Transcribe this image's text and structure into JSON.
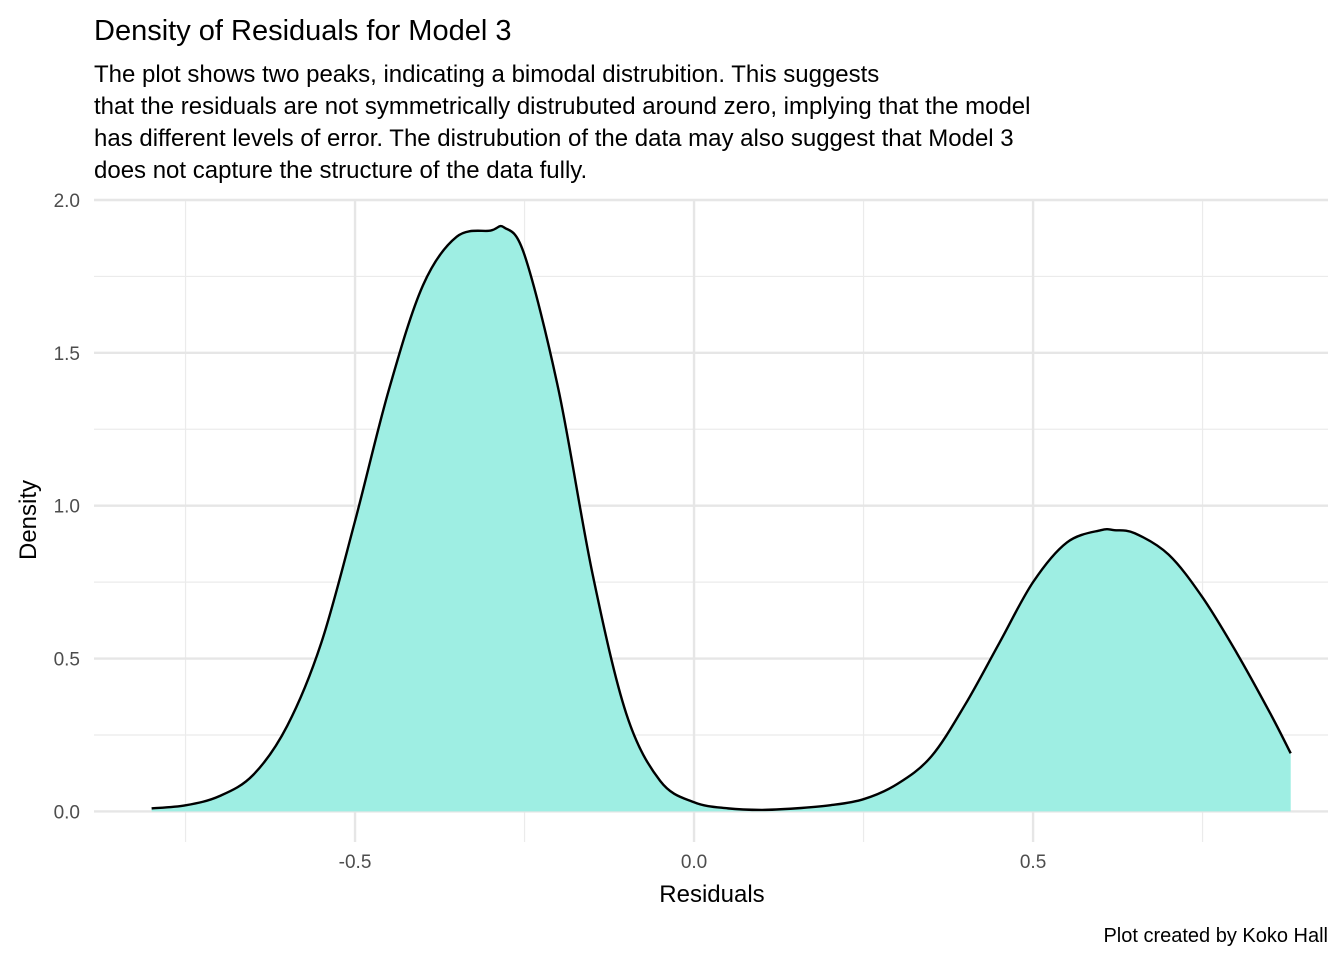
{
  "chart_data": {
    "type": "area",
    "title": "Density of Residuals for Model 3",
    "subtitle_lines": [
      "The plot shows two peaks, indicating a bimodal distrubition. This suggests",
      "that the residuals are not symmetrically distrubuted around zero, implying that the model",
      "has different levels of error. The distrubution of the data may also suggest that Model 3",
      "does not capture the structure of the data fully."
    ],
    "xlabel": "Residuals",
    "ylabel": "Density",
    "caption": "Plot created by Koko Hall",
    "xlim": [
      -0.885,
      0.935
    ],
    "ylim": [
      -0.1,
      2.0
    ],
    "x_ticks": [
      -0.5,
      0.0,
      0.5
    ],
    "x_tick_labels": [
      "-0.5",
      "0.0",
      "0.5"
    ],
    "y_ticks": [
      0.0,
      0.5,
      1.0,
      1.5,
      2.0
    ],
    "y_tick_labels": [
      "0.0",
      "0.5",
      "1.0",
      "1.5",
      "2.0"
    ],
    "x_minor": [
      -0.75,
      -0.25,
      0.25,
      0.75
    ],
    "y_minor": [
      0.25,
      0.75,
      1.25,
      1.75
    ],
    "grid": true,
    "fill_color": "#9eeee3",
    "line_color": "#000000",
    "series": [
      {
        "x": [
          -0.8,
          -0.75,
          -0.7,
          -0.65,
          -0.6,
          -0.55,
          -0.5,
          -0.45,
          -0.4,
          -0.35,
          -0.3,
          -0.28,
          -0.25,
          -0.2,
          -0.15,
          -0.1,
          -0.05,
          0.0,
          0.05,
          0.1,
          0.15,
          0.2,
          0.25,
          0.3,
          0.35,
          0.4,
          0.45,
          0.5,
          0.55,
          0.6,
          0.62,
          0.65,
          0.7,
          0.75,
          0.8,
          0.85,
          0.88
        ],
        "y": [
          0.01,
          0.02,
          0.05,
          0.12,
          0.28,
          0.55,
          0.95,
          1.38,
          1.72,
          1.88,
          1.9,
          1.91,
          1.82,
          1.38,
          0.78,
          0.32,
          0.1,
          0.03,
          0.01,
          0.005,
          0.01,
          0.02,
          0.04,
          0.09,
          0.18,
          0.35,
          0.55,
          0.75,
          0.88,
          0.92,
          0.92,
          0.91,
          0.84,
          0.7,
          0.52,
          0.32,
          0.19
        ]
      }
    ]
  }
}
